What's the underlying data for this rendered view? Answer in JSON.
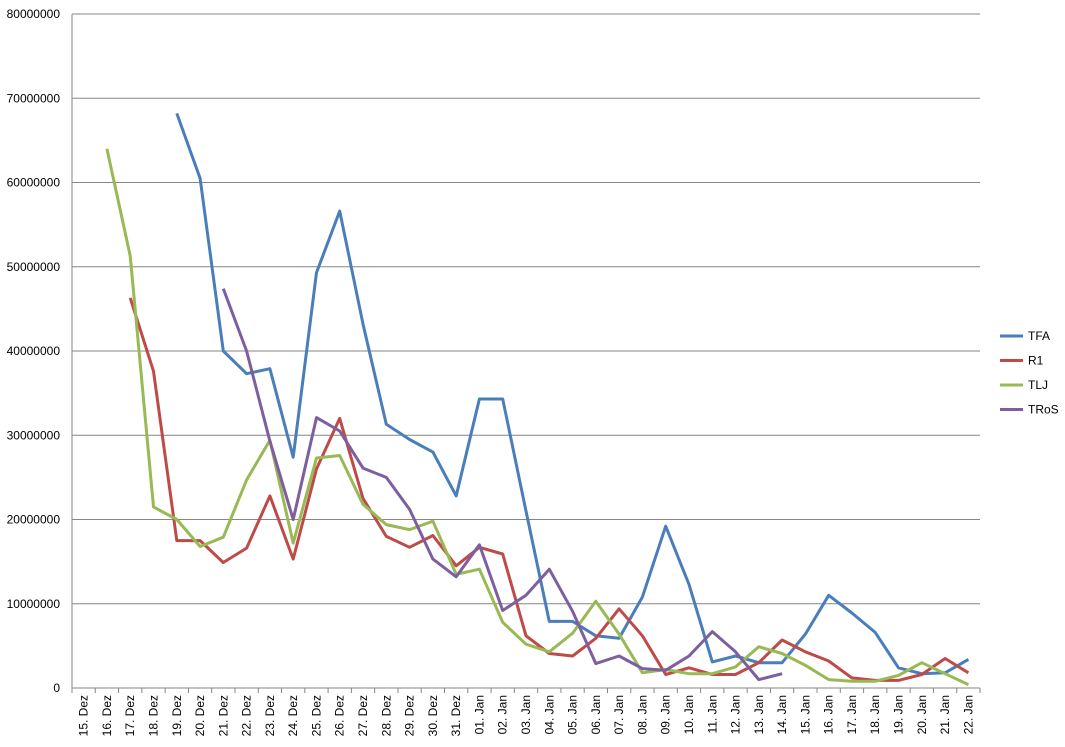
{
  "chart_data": {
    "type": "line",
    "categories": [
      "15. Dez",
      "16. Dez",
      "17. Dez",
      "18. Dez",
      "19. Dez",
      "20. Dez",
      "21. Dez",
      "22. Dez",
      "23. Dez",
      "24. Dez",
      "25. Dez",
      "26. Dez",
      "27. Dez",
      "28. Dez",
      "29. Dez",
      "30. Dez",
      "31. Dez",
      "01. Jan",
      "02. Jan",
      "03. Jan",
      "04. Jan",
      "05. Jan",
      "06. Jan",
      "07. Jan",
      "08. Jan",
      "09. Jan",
      "10. Jan",
      "11. Jan",
      "12. Jan",
      "13. Jan",
      "14. Jan",
      "15. Jan",
      "16. Jan",
      "17. Jan",
      "18. Jan",
      "19. Jan",
      "20. Jan",
      "21. Jan",
      "22. Jan"
    ],
    "series": [
      {
        "name": "TFA",
        "color": "#4a7ebb",
        "values": [
          null,
          null,
          null,
          null,
          68200000,
          60500000,
          40000000,
          37300000,
          37900000,
          27400000,
          49300000,
          56600000,
          43200000,
          31300000,
          29500000,
          28000000,
          22800000,
          34300000,
          34300000,
          21000000,
          7900000,
          7900000,
          6200000,
          5900000,
          10800000,
          19200000,
          12300000,
          3100000,
          3800000,
          3000000,
          3000000,
          6400000,
          11000000,
          8900000,
          6600000,
          2400000,
          1700000,
          1800000,
          3400000
        ]
      },
      {
        "name": "R1",
        "color": "#be4b48",
        "values": [
          null,
          null,
          46300000,
          37600000,
          17500000,
          17500000,
          14900000,
          16600000,
          22800000,
          15300000,
          26000000,
          32000000,
          22500000,
          18000000,
          16700000,
          18100000,
          14500000,
          16700000,
          15900000,
          6200000,
          4100000,
          3800000,
          5900000,
          9400000,
          6200000,
          1600000,
          2400000,
          1600000,
          1600000,
          3000000,
          5700000,
          4300000,
          3200000,
          1200000,
          900000,
          900000,
          1600000,
          3500000,
          1800000
        ]
      },
      {
        "name": "TLJ",
        "color": "#98b954",
        "values": [
          null,
          64000000,
          51300000,
          21500000,
          20000000,
          16800000,
          17900000,
          24700000,
          29400000,
          17200000,
          27300000,
          27600000,
          21800000,
          19400000,
          18800000,
          19800000,
          13500000,
          14100000,
          7800000,
          5200000,
          4300000,
          6500000,
          10300000,
          6400000,
          1800000,
          2200000,
          1700000,
          1700000,
          2500000,
          4900000,
          4100000,
          2700000,
          1000000,
          800000,
          800000,
          1500000,
          3000000,
          1700000,
          400000
        ]
      },
      {
        "name": "TRoS",
        "color": "#7d5fa0",
        "values": [
          null,
          null,
          null,
          null,
          null,
          null,
          47400000,
          40000000,
          29300000,
          20000000,
          32100000,
          30500000,
          26100000,
          25000000,
          21200000,
          15300000,
          13200000,
          17000000,
          9200000,
          11000000,
          14100000,
          9100000,
          2900000,
          3800000,
          2300000,
          2100000,
          3800000,
          6700000,
          4300000,
          1000000,
          1700000,
          null,
          null,
          null,
          null,
          null,
          null,
          null,
          null
        ]
      }
    ],
    "ylim": [
      0,
      80000000
    ],
    "yticks": [
      0,
      10000000,
      20000000,
      30000000,
      40000000,
      50000000,
      60000000,
      70000000,
      80000000
    ],
    "grid": true,
    "legend": "right"
  }
}
